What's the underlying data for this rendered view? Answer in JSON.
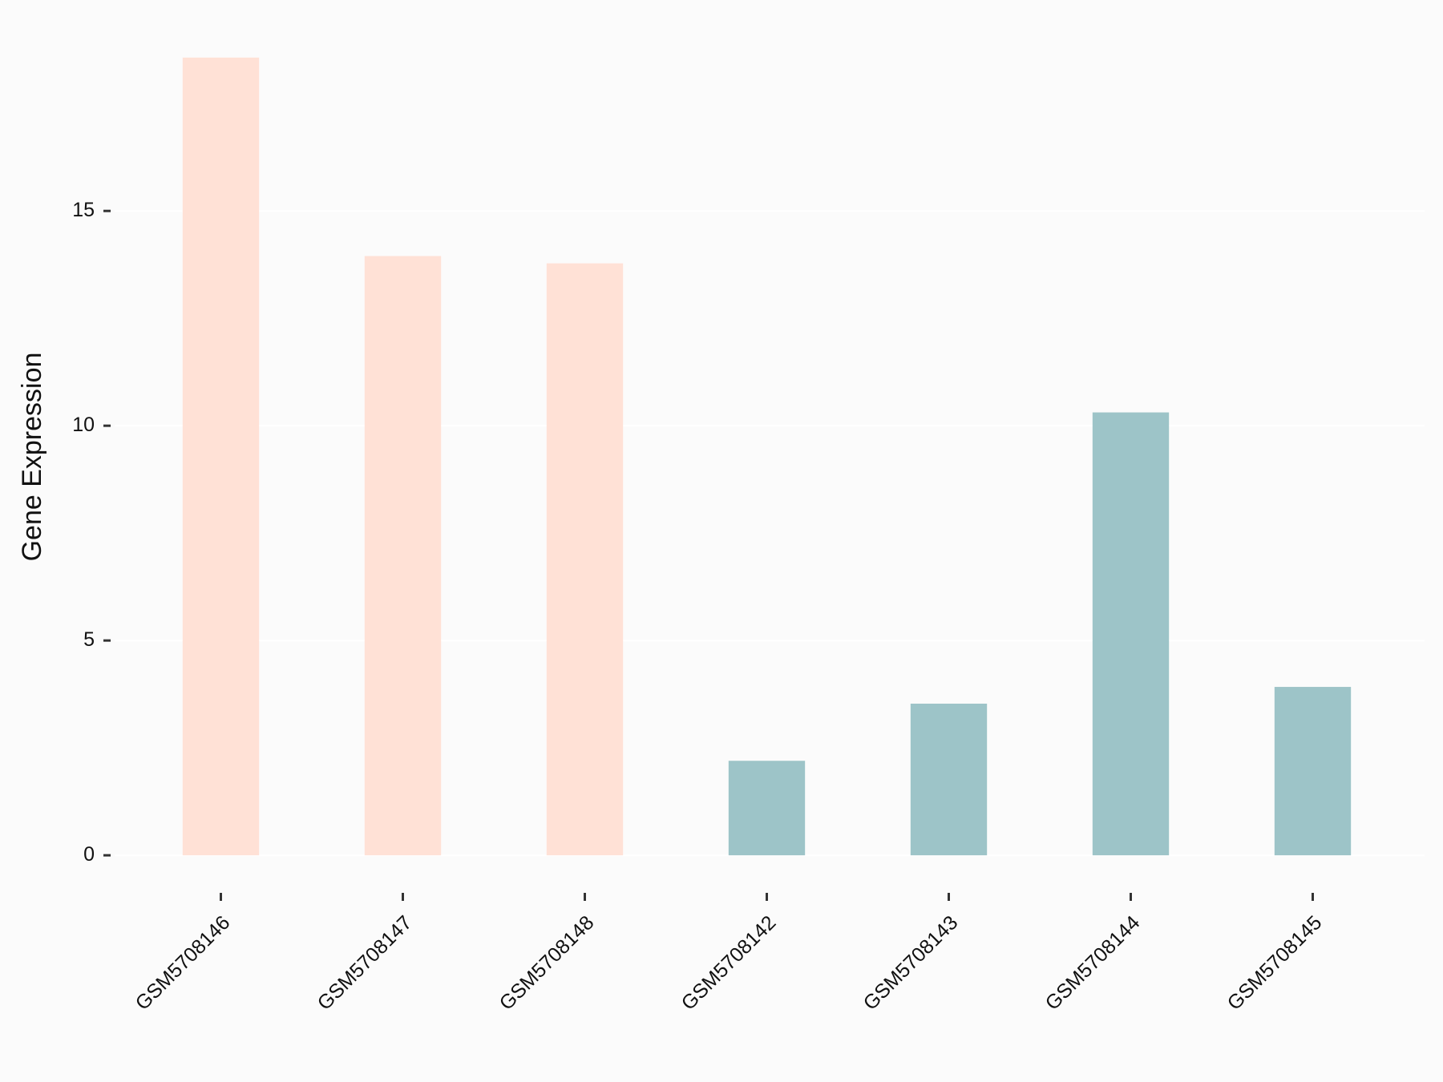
{
  "chart_data": {
    "type": "bar",
    "ylabel": "Gene Expression",
    "categories": [
      "GSM5708146",
      "GSM5708147",
      "GSM5708148",
      "GSM5708142",
      "GSM5708143",
      "GSM5708144",
      "GSM5708145"
    ],
    "values": [
      18.57,
      13.95,
      13.78,
      2.2,
      3.53,
      10.31,
      3.92
    ],
    "colors": [
      "#ffe1d6",
      "#ffe1d6",
      "#ffe1d6",
      "#9dc4c8",
      "#9dc4c8",
      "#9dc4c8",
      "#9dc4c8"
    ],
    "ylim": [
      -0.93,
      19.5
    ],
    "yticks": [
      0,
      5,
      10,
      15
    ],
    "grid": true
  }
}
